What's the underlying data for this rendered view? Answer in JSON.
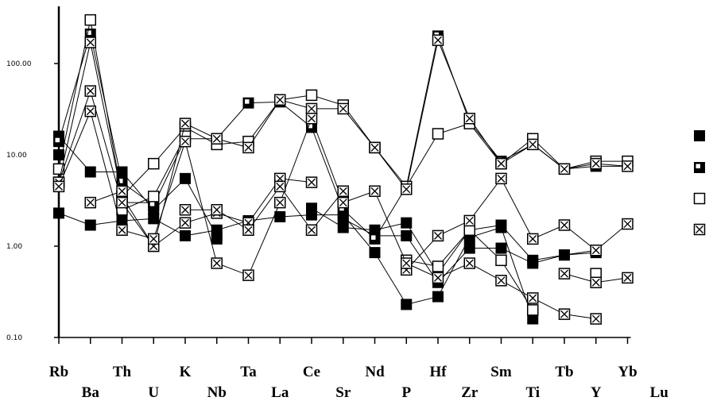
{
  "chart_data": {
    "type": "line",
    "title": "",
    "xlabel": "",
    "ylabel": "",
    "log_scale_y": true,
    "ylim": [
      0.1,
      300
    ],
    "yticks": [
      {
        "value": 0.1,
        "label": "0.10"
      },
      {
        "value": 1,
        "label": "1.00"
      },
      {
        "value": 10,
        "label": "10.00"
      },
      {
        "value": 100,
        "label": "100.00"
      }
    ],
    "categories": [
      "Rb",
      "Ba",
      "Th",
      "U",
      "K",
      "Nb",
      "Ta",
      "La",
      "Ce",
      "Sr",
      "Nd",
      "P",
      "Hf",
      "Zr",
      "Sm",
      "Ti",
      "Tb",
      "Y",
      "Yb",
      "Lu"
    ],
    "grid": false,
    "legend_position": "right",
    "series": [
      {
        "marker": "filled",
        "values": [
          2.3,
          1.7,
          1.9,
          2.0,
          1.3,
          1.5,
          1.9,
          2.1,
          2.2,
          2.2,
          0.85,
          0.23,
          0.28,
          1.25,
          1.6,
          0.16,
          null,
          null,
          null,
          null
        ]
      },
      {
        "marker": "filled",
        "values": [
          16,
          6.5,
          6.5,
          2.5,
          5.5,
          1.3,
          null,
          null,
          2.6,
          1.6,
          1.5,
          1.8,
          0.5,
          1.5,
          1.7,
          0.7,
          0.8,
          0.9,
          null,
          null
        ]
      },
      {
        "marker": "filled",
        "values": [
          10,
          null,
          3.0,
          3.0,
          null,
          1.2,
          null,
          null,
          null,
          2.0,
          1.3,
          1.3,
          0.4,
          0.95,
          0.95,
          0.65,
          0.8,
          0.85,
          null,
          null
        ]
      },
      {
        "marker": "half",
        "values": [
          14,
          210,
          5.0,
          2.8,
          15,
          15,
          37,
          38,
          20,
          2.5,
          1.2,
          4.5,
          200,
          23,
          8.5,
          13,
          7.0,
          7.5,
          7.5,
          null
        ]
      },
      {
        "marker": "open",
        "values": [
          7,
          300,
          3.5,
          8,
          20,
          13,
          14,
          40,
          45,
          35,
          12,
          4.5,
          17,
          22,
          8,
          15,
          7,
          8.5,
          8.5,
          null
        ]
      },
      {
        "marker": "open",
        "values": [
          null,
          null,
          2.5,
          3.5,
          16,
          null,
          null,
          null,
          null,
          null,
          null,
          0.7,
          0.6,
          1.5,
          0.7,
          0.2,
          null,
          0.5,
          null,
          null
        ]
      },
      {
        "marker": "xbox",
        "values": [
          5,
          170,
          3.5,
          1.0,
          22,
          15,
          12,
          40,
          32,
          32,
          12,
          4.2,
          180,
          25,
          8,
          13,
          7.0,
          8,
          7.5,
          null
        ]
      },
      {
        "marker": "xbox",
        "values": [
          5,
          50,
          3.0,
          1.0,
          1.8,
          2.3,
          1.8,
          5.5,
          5.0,
          null,
          null,
          0.55,
          1.3,
          1.9,
          5.5,
          1.2,
          1.7,
          0.9,
          1.75,
          null
        ]
      },
      {
        "marker": "xbox",
        "values": [
          4.5,
          30,
          1.5,
          1.2,
          14,
          0.65,
          0.48,
          3.0,
          25,
          3.0,
          4.0,
          0.65,
          0.45,
          0.65,
          0.42,
          0.27,
          0.18,
          0.16,
          null,
          null
        ]
      },
      {
        "marker": "xbox",
        "values": [
          null,
          3.0,
          4.0,
          null,
          2.5,
          2.5,
          1.5,
          4.5,
          1.5,
          4.0,
          null,
          null,
          null,
          null,
          null,
          null,
          0.5,
          0.4,
          0.45,
          null
        ]
      }
    ],
    "legend_markers": [
      "filled",
      "half",
      "open",
      "xbox"
    ]
  }
}
